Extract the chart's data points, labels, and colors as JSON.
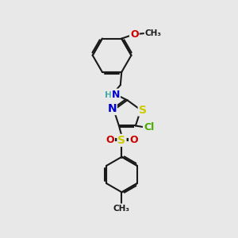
{
  "background_color": "#e8e8e8",
  "bond_color": "#1a1a1a",
  "bond_width": 1.5,
  "atom_colors": {
    "S": "#cccc00",
    "N": "#0000cc",
    "O": "#cc0000",
    "Cl": "#44aa00",
    "H": "#44aaaa",
    "C": "#1a1a1a"
  },
  "font_size": 9
}
